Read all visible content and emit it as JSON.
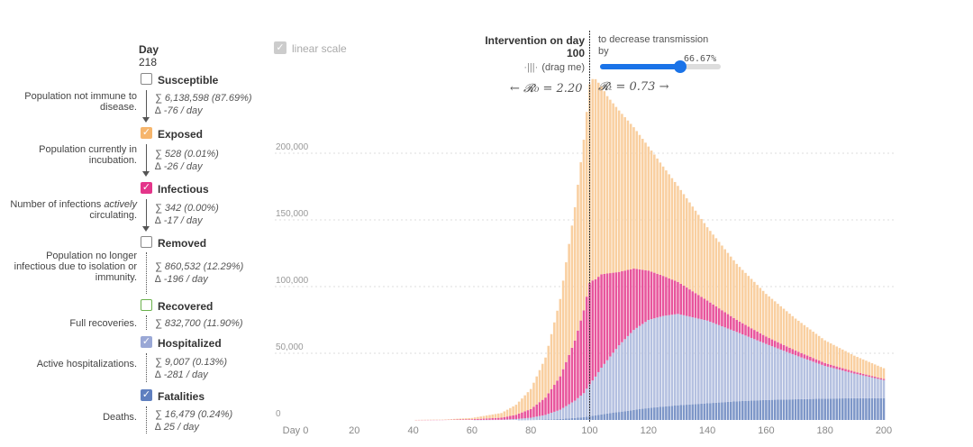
{
  "sidebar": {
    "day_title": "Day",
    "day_value": "218",
    "items": [
      {
        "key": "susceptible",
        "label": "Susceptible",
        "checked": false,
        "color": "#ffffff",
        "desc": "Population not immune to disease.",
        "sum": "∑ 6,138,598 (87.69%)",
        "delta": "∆ -76 / day"
      },
      {
        "key": "exposed",
        "label": "Exposed",
        "checked": true,
        "color": "#f9c58c",
        "desc": "Population currently in incubation.",
        "sum": "∑ 528 (0.01%)",
        "delta": "∆ -26 / day"
      },
      {
        "key": "infectious",
        "label": "Infectious",
        "checked": true,
        "color": "#e4358a",
        "desc_parts": [
          "Number of infections ",
          "actively",
          " circulating."
        ],
        "sum": "∑ 342 (0.00%)",
        "delta": "∆ -17 / day"
      },
      {
        "key": "removed",
        "label": "Removed",
        "checked": false,
        "color": "#ffffff",
        "desc": "Population no longer infectious due to isolation or immunity.",
        "sum": "∑ 860,532 (12.29%)",
        "delta": "∆ -196 / day"
      },
      {
        "key": "recovered",
        "label": "Recovered",
        "checked": false,
        "color": "#ffffff",
        "desc": "Full recoveries.",
        "sum": "∑ 832,700 (11.90%)",
        "delta": ""
      },
      {
        "key": "hospitalized",
        "label": "Hospitalized",
        "checked": true,
        "color": "#a4b3dc",
        "desc": "Active hospitalizations.",
        "sum": "∑ 9,007 (0.13%)",
        "delta": "∆ -281 / day"
      },
      {
        "key": "fatalities",
        "label": "Fatalities",
        "checked": true,
        "color": "#5f7fbf",
        "desc": "Deaths.",
        "sum": "∑ 16,479 (0.24%)",
        "delta": "∆ 25 / day"
      }
    ]
  },
  "controls": {
    "linear_scale_label": "linear scale",
    "linear_scale_checked": true,
    "intervention_title": "Intervention on day",
    "intervention_day": "100",
    "drag_label": "(drag me)",
    "r0_text": "← 𝓡₀ = 2.20",
    "rt_text": "𝓡ₜ = 0.73 →",
    "decrease_line1": "to decrease transmission",
    "decrease_line2": "by",
    "decrease_percent": "66.67%",
    "slider_value": 0.6667
  },
  "chart_data": {
    "type": "bar",
    "stacked": true,
    "x_range": [
      0,
      200
    ],
    "ylim": [
      0,
      250000
    ],
    "y_ticks": [
      0,
      50000,
      100000,
      150000,
      200000
    ],
    "y_tick_labels": [
      "0",
      "50,000",
      "100,000",
      "150,000",
      "200,000"
    ],
    "x_ticks": [
      0,
      20,
      40,
      60,
      80,
      100,
      120,
      140,
      160,
      180,
      200
    ],
    "x_tick_labels": [
      "Day 0",
      "20",
      "40",
      "60",
      "80",
      "100",
      "120",
      "140",
      "160",
      "180",
      "200"
    ],
    "intervention_day": 100,
    "grid": true,
    "series": [
      {
        "name": "Fatalities",
        "color": "#7d96c8"
      },
      {
        "name": "Hospitalized",
        "color": "#b4c0e0"
      },
      {
        "name": "Infectious",
        "color": "#e8559c"
      },
      {
        "name": "Exposed",
        "color": "#f9cfa0"
      }
    ],
    "sampled_totals": {
      "x": [
        40,
        50,
        60,
        70,
        75,
        80,
        85,
        90,
        95,
        98,
        100,
        101,
        102,
        104,
        106,
        110,
        115,
        120,
        125,
        130,
        140,
        150,
        160,
        170,
        180,
        190,
        200
      ],
      "fatalities": [
        0,
        0,
        0,
        0,
        0,
        100,
        300,
        700,
        1500,
        2100,
        2800,
        3100,
        3500,
        4200,
        4800,
        6000,
        7500,
        9000,
        10000,
        11000,
        12500,
        14000,
        15000,
        15500,
        16000,
        16300,
        16400
      ],
      "hospitalized": [
        0,
        0,
        0,
        200,
        700,
        1600,
        3500,
        7000,
        13000,
        18000,
        24000,
        26500,
        29000,
        35000,
        40000,
        50000,
        60000,
        66000,
        68000,
        68500,
        62000,
        52000,
        42000,
        33000,
        24500,
        18500,
        13500
      ],
      "infectious": [
        0,
        100,
        500,
        1500,
        3200,
        6500,
        13000,
        25000,
        45000,
        62000,
        76000,
        75000,
        73000,
        70000,
        65000,
        55000,
        46000,
        37000,
        30000,
        24000,
        15000,
        9000,
        5500,
        3500,
        2200,
        1400,
        900
      ],
      "exposed": [
        0,
        200,
        1000,
        3500,
        7500,
        15000,
        30000,
        58000,
        100000,
        128000,
        149000,
        151000,
        150000,
        141000,
        133000,
        121000,
        106000,
        93000,
        82000,
        72000,
        55000,
        42000,
        32000,
        24000,
        17000,
        12000,
        8000
      ]
    }
  }
}
